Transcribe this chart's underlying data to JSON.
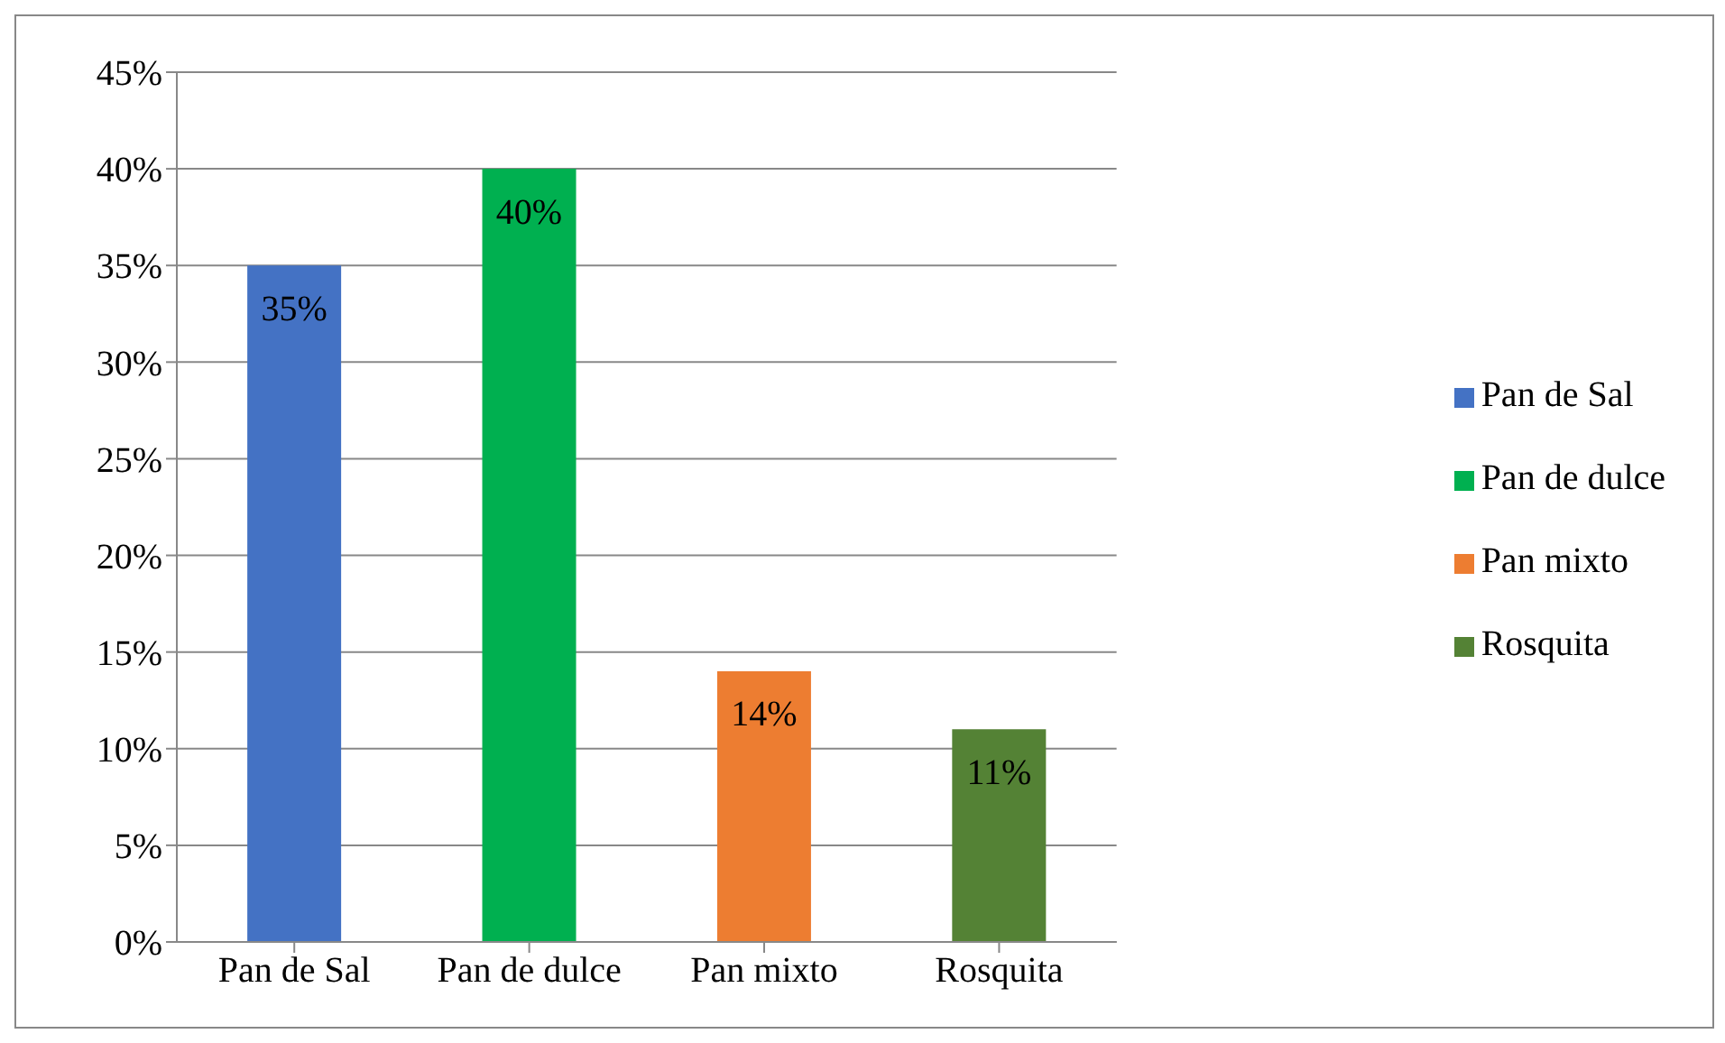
{
  "chart_data": {
    "type": "bar",
    "categories": [
      "Pan de Sal",
      "Pan de dulce",
      "Pan mixto",
      "Rosquita"
    ],
    "stacked": true,
    "series": [
      {
        "name": "Pan de Sal",
        "color": "#4472c4",
        "values": [
          35,
          null,
          null,
          null
        ],
        "value_labels": [
          "35%",
          null,
          null,
          null
        ]
      },
      {
        "name": "Pan de dulce",
        "color": "#00b050",
        "values": [
          null,
          40,
          null,
          null
        ],
        "value_labels": [
          null,
          "40%",
          null,
          null
        ]
      },
      {
        "name": "Pan mixto",
        "color": "#ed7d31",
        "values": [
          null,
          null,
          14,
          null
        ],
        "value_labels": [
          null,
          null,
          "14%",
          null
        ]
      },
      {
        "name": "Rosquita",
        "color": "#548235",
        "values": [
          null,
          null,
          null,
          11
        ],
        "value_labels": [
          null,
          null,
          null,
          "11%"
        ]
      }
    ],
    "ylim": [
      0,
      45
    ],
    "yticks": [
      {
        "value": 0,
        "label": "0%"
      },
      {
        "value": 5,
        "label": "5%"
      },
      {
        "value": 10,
        "label": "10%"
      },
      {
        "value": 15,
        "label": "15%"
      },
      {
        "value": 20,
        "label": "20%"
      },
      {
        "value": 25,
        "label": "25%"
      },
      {
        "value": 30,
        "label": "30%"
      },
      {
        "value": 35,
        "label": "35%"
      },
      {
        "value": 40,
        "label": "40%"
      },
      {
        "value": 45,
        "label": "45%"
      }
    ],
    "grid": "y",
    "legend": "right"
  }
}
